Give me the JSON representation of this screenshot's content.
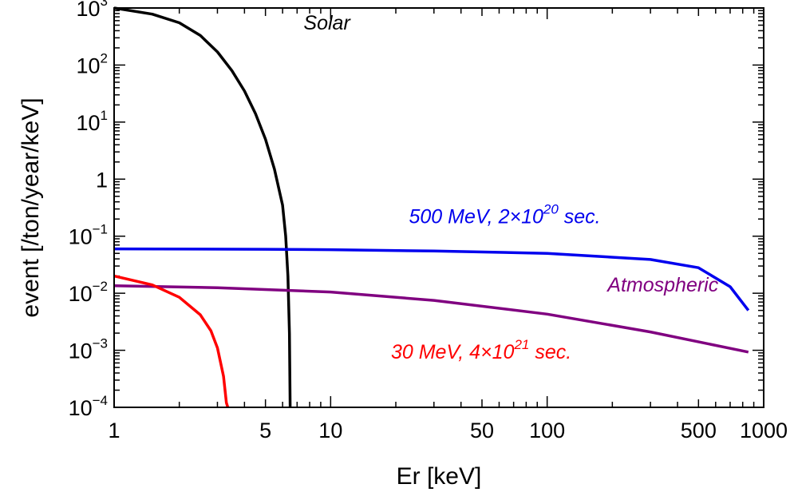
{
  "chart_data": {
    "type": "line",
    "title": "",
    "xlabel": "Er [keV]",
    "ylabel": "event [/ton/year/keV]",
    "xscale": "log",
    "yscale": "log",
    "xlim": [
      1,
      1000
    ],
    "ylim": [
      0.0001,
      1000
    ],
    "grid": false,
    "x_ticks": [
      {
        "value": 1,
        "label": "1"
      },
      {
        "value": 5,
        "label": "5"
      },
      {
        "value": 10,
        "label": "10"
      },
      {
        "value": 50,
        "label": "50"
      },
      {
        "value": 100,
        "label": "100"
      },
      {
        "value": 500,
        "label": "500"
      },
      {
        "value": 1000,
        "label": "1000"
      }
    ],
    "y_ticks": [
      {
        "value": 0.0001,
        "base": "10",
        "exp": "−4"
      },
      {
        "value": 0.001,
        "base": "10",
        "exp": "−3"
      },
      {
        "value": 0.01,
        "base": "10",
        "exp": "−2"
      },
      {
        "value": 0.1,
        "base": "10",
        "exp": "−1"
      },
      {
        "value": 1,
        "base": "1",
        "exp": ""
      },
      {
        "value": 10,
        "base": "10",
        "exp": "1"
      },
      {
        "value": 100,
        "base": "10",
        "exp": "2"
      },
      {
        "value": 1000,
        "base": "10",
        "exp": "3"
      }
    ],
    "series": [
      {
        "color": "#000000",
        "x": [
          1,
          1.5,
          2,
          2.5,
          3,
          3.5,
          4,
          4.5,
          5,
          5.5,
          6,
          6.2,
          6.35,
          6.45,
          6.5
        ],
        "y": [
          1000,
          780,
          550,
          330,
          170,
          80,
          35,
          14,
          5,
          1.5,
          0.35,
          0.1,
          0.02,
          0.002,
          0.0001
        ]
      },
      {
        "color": "#0000ee",
        "x": [
          1,
          5,
          10,
          30,
          100,
          300,
          500,
          700,
          850
        ],
        "y": [
          0.06,
          0.059,
          0.058,
          0.055,
          0.05,
          0.039,
          0.028,
          0.013,
          0.005
        ]
      },
      {
        "color": "#800080",
        "x": [
          1,
          3,
          10,
          30,
          100,
          300,
          850
        ],
        "y": [
          0.0135,
          0.0125,
          0.0105,
          0.0075,
          0.0043,
          0.0021,
          0.00093
        ]
      },
      {
        "color": "#ff0000",
        "x": [
          1,
          1.5,
          2,
          2.5,
          2.8,
          3.0,
          3.2,
          3.3,
          3.35
        ],
        "y": [
          0.02,
          0.014,
          0.0085,
          0.0042,
          0.0022,
          0.0011,
          0.00035,
          0.00012,
          0.0001
        ]
      }
    ],
    "annotations": [
      {
        "text": "Solar",
        "color": "#000000",
        "x": 7.5,
        "y": 420
      },
      {
        "text": "500 MeV, 2×10",
        "sup": "20",
        "tail": " sec.",
        "color": "#0000ee",
        "x": 23,
        "y": 0.17
      },
      {
        "text": "Atmospheric",
        "color": "#800080",
        "x": 190,
        "y": 0.0108
      },
      {
        "text": "30 MeV, 4×10",
        "sup": "21",
        "tail": " sec.",
        "color": "#ff0000",
        "x": 19,
        "y": 0.00072
      }
    ]
  }
}
